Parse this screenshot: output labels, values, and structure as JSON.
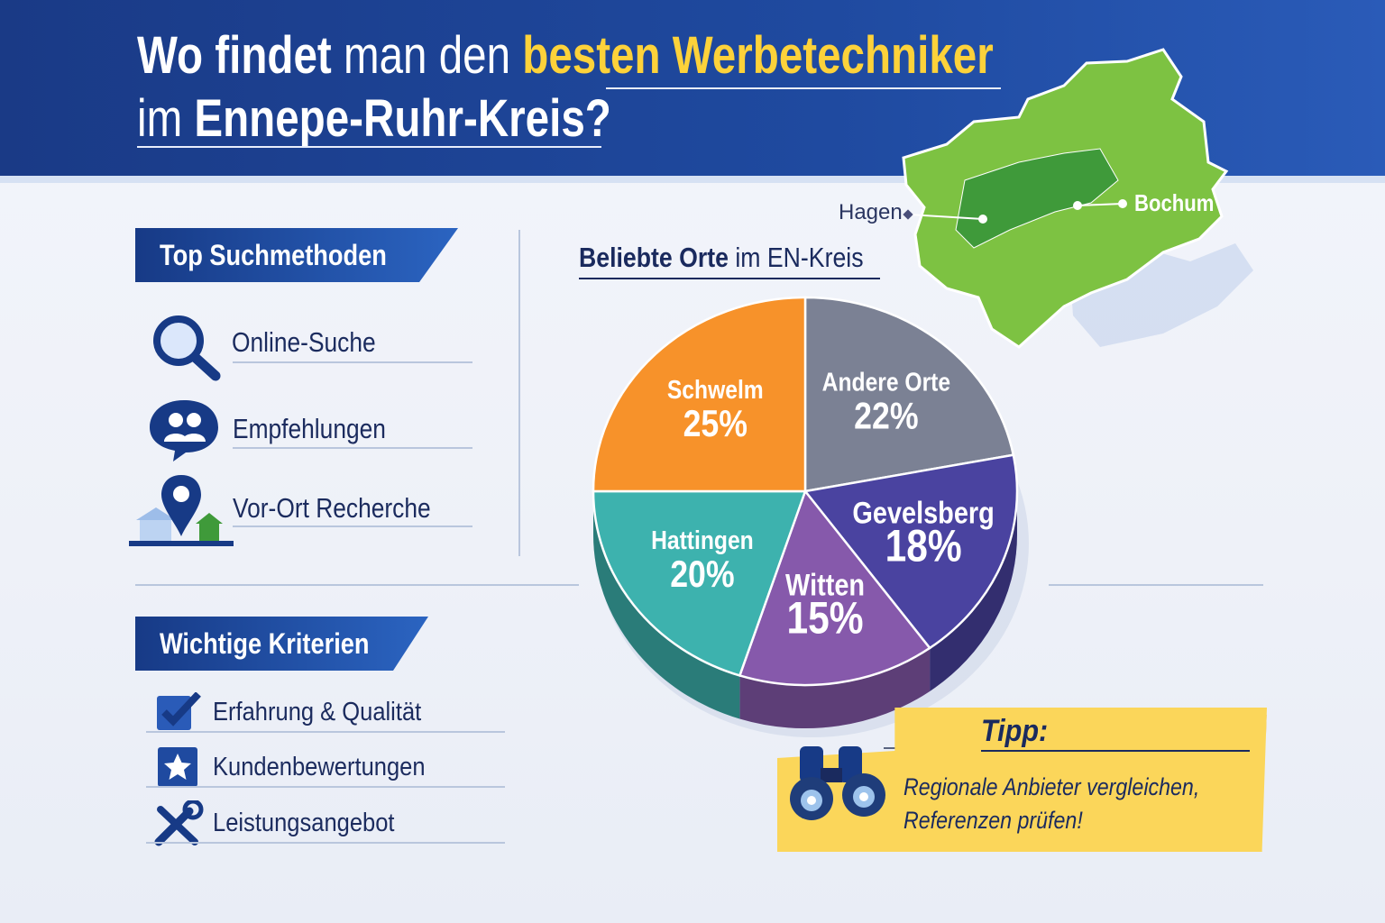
{
  "header": {
    "title_line1_part1": "Wo findet",
    "title_line1_part2": " man den ",
    "title_line1_highlight": "besten Werbetechniker",
    "title_line2_part1": "im ",
    "title_line2_part2": "Ennepe-Ruhr-Kreis?"
  },
  "map": {
    "label_left": "Hagen",
    "label_right": "Bochum",
    "color": "#7dc242"
  },
  "search_methods": {
    "heading": "Top Suchmethoden",
    "items": [
      {
        "label": "Online-Suche",
        "icon": "magnifier-icon"
      },
      {
        "label": "Empfehlungen",
        "icon": "people-chat-icon"
      },
      {
        "label": "Vor-Ort Recherche",
        "icon": "location-pin-icon"
      }
    ]
  },
  "criteria": {
    "heading": "Wichtige Kriterien",
    "items": [
      {
        "label": "Erfahrung & Qualität",
        "icon": "checkbox-icon"
      },
      {
        "label": "Kundenbewertungen",
        "icon": "star-icon"
      },
      {
        "label": "Leistungsangebot",
        "icon": "tools-icon"
      }
    ]
  },
  "chart_data": {
    "type": "pie",
    "title_bold": "Beliebte Orte",
    "title_rest": " im EN-Kreis",
    "slices": [
      {
        "label": "Andere Orte",
        "value": 22,
        "pct": "22%",
        "color": "#7b8194"
      },
      {
        "label": "Gevelsberg",
        "value": 18,
        "pct": "18%",
        "color": "#4a43a0"
      },
      {
        "label": "Witten",
        "value": 15,
        "pct": "15%",
        "color": "#8659ab"
      },
      {
        "label": "Hattingen",
        "value": 20,
        "pct": "20%",
        "color": "#3db2ae"
      },
      {
        "label": "Schwelm",
        "value": 25,
        "pct": "25%",
        "color": "#f7922a"
      }
    ],
    "start": "12 o'clock, clockwise",
    "style": "3D"
  },
  "tip": {
    "heading": "Tipp:",
    "line1": "Regionale Anbieter vergleichen,",
    "line2": "Referenzen prüfen!",
    "icon": "binoculars-icon"
  }
}
